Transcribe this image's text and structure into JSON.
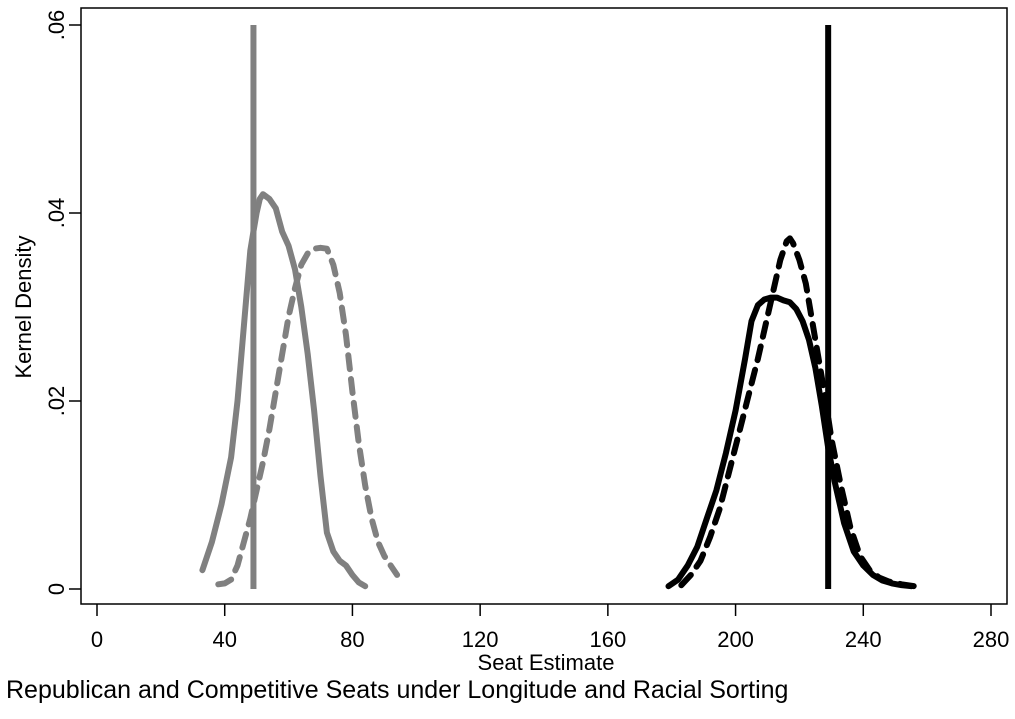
{
  "chart_data": {
    "type": "line",
    "title": "",
    "caption": "Republican and Competitive Seats under Longitude and Racial Sorting",
    "xlabel": "Seat Estimate",
    "ylabel": "Kernel Density",
    "xlim": [
      0,
      280
    ],
    "ylim": [
      0,
      0.06
    ],
    "x_ticks": [
      0,
      40,
      80,
      120,
      160,
      200,
      240,
      280
    ],
    "x_tick_labels": [
      "0",
      "40",
      "80",
      "120",
      "160",
      "200",
      "240",
      "280"
    ],
    "y_ticks": [
      0,
      0.02,
      0.04,
      0.06
    ],
    "y_tick_labels": [
      "0",
      ".02",
      ".04",
      ".06"
    ],
    "grid": false,
    "legend": "none",
    "colors": {
      "gray": "#808080",
      "black": "#000000"
    },
    "series": [
      {
        "color": "#808080",
        "dash": "solid",
        "x": [
          33,
          36,
          39,
          42,
          44,
          46,
          47,
          48,
          49,
          50,
          51,
          52,
          54,
          56,
          58,
          60,
          62,
          64,
          66,
          68,
          70,
          72,
          74,
          76,
          78,
          80,
          82,
          84
        ],
        "y": [
          0.002,
          0.005,
          0.009,
          0.014,
          0.02,
          0.028,
          0.032,
          0.036,
          0.038,
          0.04,
          0.0415,
          0.042,
          0.0415,
          0.0405,
          0.038,
          0.0365,
          0.034,
          0.03,
          0.025,
          0.019,
          0.012,
          0.006,
          0.004,
          0.003,
          0.0025,
          0.0015,
          0.0007,
          0.0003
        ]
      },
      {
        "color": "#808080",
        "dash": "dashed",
        "x": [
          38,
          40,
          42,
          44,
          46,
          48,
          50,
          52,
          54,
          56,
          58,
          60,
          62,
          64,
          66,
          68,
          70,
          72,
          74,
          76,
          78,
          80,
          82,
          84,
          86,
          88,
          90,
          92,
          94
        ],
        "y": [
          0.0005,
          0.0006,
          0.001,
          0.0025,
          0.005,
          0.0075,
          0.0105,
          0.0135,
          0.017,
          0.021,
          0.025,
          0.029,
          0.032,
          0.0345,
          0.0357,
          0.0362,
          0.0363,
          0.0362,
          0.0345,
          0.0315,
          0.027,
          0.021,
          0.0155,
          0.011,
          0.0075,
          0.005,
          0.0035,
          0.0025,
          0.0015
        ]
      },
      {
        "color": "#000000",
        "dash": "solid",
        "x": [
          179,
          182,
          185,
          188,
          191,
          194,
          197,
          200,
          203,
          205,
          207,
          209,
          211,
          213,
          215,
          217,
          219,
          221,
          223,
          225,
          227,
          229,
          231,
          234,
          237,
          240,
          243,
          246,
          249,
          252,
          255
        ],
        "y": [
          0.0003,
          0.001,
          0.0025,
          0.0045,
          0.0075,
          0.0105,
          0.0145,
          0.019,
          0.0245,
          0.0285,
          0.0302,
          0.0308,
          0.031,
          0.031,
          0.0307,
          0.0305,
          0.0298,
          0.0285,
          0.0265,
          0.0235,
          0.0195,
          0.015,
          0.0115,
          0.007,
          0.004,
          0.0025,
          0.0015,
          0.0009,
          0.0006,
          0.0004,
          0.0003
        ]
      },
      {
        "color": "#000000",
        "dash": "dashed",
        "x": [
          183,
          186,
          189,
          192,
          195,
          198,
          201,
          204,
          207,
          210,
          212,
          214,
          216,
          217,
          218,
          220,
          222,
          224,
          226,
          228,
          230,
          233,
          236,
          239,
          242,
          245,
          248,
          252,
          256
        ],
        "y": [
          0.0004,
          0.0015,
          0.003,
          0.0055,
          0.0085,
          0.0125,
          0.0165,
          0.0205,
          0.0245,
          0.029,
          0.032,
          0.035,
          0.037,
          0.0373,
          0.0368,
          0.035,
          0.0325,
          0.0285,
          0.0245,
          0.0205,
          0.016,
          0.011,
          0.0065,
          0.0035,
          0.002,
          0.0012,
          0.0008,
          0.0005,
          0.0003
        ]
      }
    ],
    "reference_lines": [
      {
        "x": 49,
        "color": "#808080",
        "y_from": 0,
        "y_to": 0.06
      },
      {
        "x": 229,
        "color": "#000000",
        "y_from": 0,
        "y_to": 0.06
      }
    ]
  }
}
